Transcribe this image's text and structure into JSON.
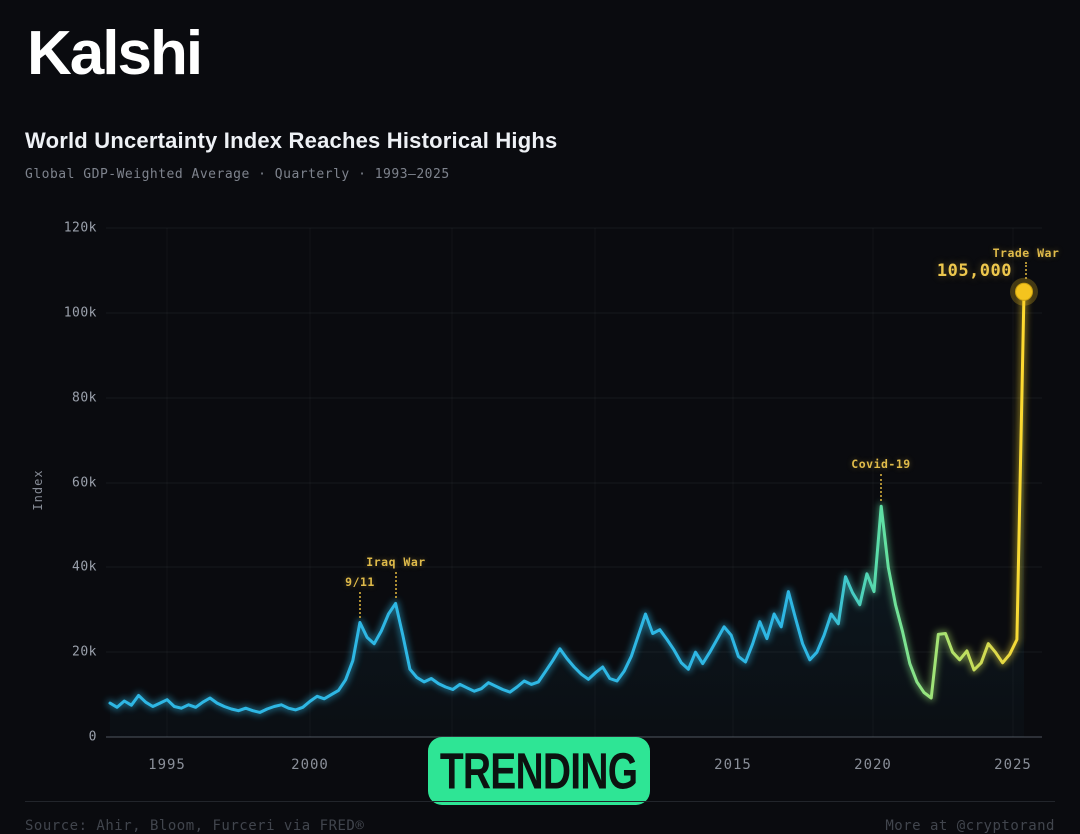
{
  "brand": {
    "logo": "Kalshi"
  },
  "header": {
    "title": "World Uncertainty Index Reaches Historical Highs",
    "subtitle": "Global GDP-Weighted Average · Quarterly · 1993–2025"
  },
  "badge": {
    "label": "TRENDING",
    "color": "#2ee595"
  },
  "footer": {
    "source": "Source: Ahir, Bloom, Furceri via FRED®",
    "more": "More at @cryptorand"
  },
  "chart_data": {
    "type": "line",
    "title": "World Uncertainty Index Reaches Historical Highs",
    "subtitle": "Global GDP-Weighted Average · Quarterly · 1993–2025",
    "ylabel": "Index",
    "xlabel": "",
    "frequency": "quarterly",
    "x_start_year": 1993,
    "x_end": "2025 Q1",
    "ylim": [
      0,
      120000
    ],
    "grid": "horizontal-subtle",
    "y_tick_labels": [
      "120k",
      "100k",
      "80k",
      "60k",
      "40k",
      "20k",
      "0"
    ],
    "x_tick_labels": [
      "1995",
      "2000",
      "2015",
      "2020",
      "2025"
    ],
    "series": [
      {
        "name": "World Uncertainty Index (Global GDP-Weighted Average)",
        "values": [
          8000,
          7000,
          8500,
          7500,
          9800,
          8200,
          7200,
          8000,
          8800,
          7200,
          6800,
          7600,
          7000,
          8200,
          9200,
          8000,
          7200,
          6600,
          6200,
          6800,
          6200,
          5800,
          6600,
          7200,
          7600,
          6800,
          6400,
          7000,
          8400,
          9600,
          9000,
          10000,
          11000,
          13500,
          18000,
          27000,
          23500,
          22000,
          25000,
          29000,
          31500,
          24000,
          16000,
          14000,
          13000,
          13800,
          12600,
          11800,
          11200,
          12400,
          11600,
          10800,
          11400,
          12800,
          12000,
          11200,
          10600,
          11800,
          13200,
          12400,
          13000,
          15500,
          18000,
          20800,
          18500,
          16500,
          14800,
          13600,
          15200,
          16500,
          13800,
          13200,
          15500,
          19000,
          24000,
          29000,
          24400,
          25300,
          23000,
          20500,
          17500,
          16000,
          20000,
          17300,
          20000,
          23000,
          26000,
          24000,
          19000,
          17700,
          22000,
          27200,
          23200,
          29000,
          26000,
          34300,
          28000,
          22000,
          18200,
          20000,
          24000,
          29000,
          26700,
          37800,
          34000,
          31200,
          38500,
          34300,
          54400,
          40000,
          31200,
          24800,
          17300,
          13000,
          10500,
          9200,
          24200,
          24400,
          20000,
          18200,
          20300,
          15800,
          17500,
          22000,
          20000,
          17500,
          19500,
          23000,
          105000
        ]
      }
    ],
    "annotations": [
      {
        "label": "9/11",
        "year": "2001 Q4",
        "value": 27000
      },
      {
        "label": "Iraq War",
        "year": "2003 Q1",
        "value": 31500
      },
      {
        "label": "Covid-19",
        "year": "2020 Q1",
        "value": 54400
      },
      {
        "label": "Trade War",
        "year": "2025 Q1",
        "value": 105000
      }
    ],
    "end_point_label": "105,000",
    "colors": {
      "line_main": "#2eb7e4",
      "line_covid": "#5fe0a4",
      "line_late": "#b9e45e",
      "line_end": "#ffd92e",
      "annotation": "#e0bb4a",
      "end_dot": "#f4c41e"
    }
  }
}
